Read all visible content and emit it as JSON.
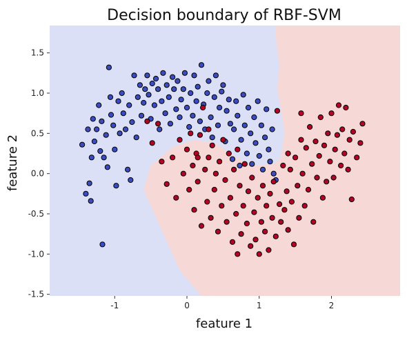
{
  "chart_data": {
    "type": "scatter",
    "title": "Decision boundary of RBF-SVM",
    "xlabel": "feature 1",
    "ylabel": "feature 2",
    "xlim": [
      -1.9,
      2.95
    ],
    "ylim": [
      -1.52,
      1.84
    ],
    "xticks": [
      -1,
      0,
      1,
      2
    ],
    "yticks": [
      -1.5,
      -1.0,
      -0.5,
      0.0,
      0.5,
      1.0,
      1.5
    ],
    "xtick_labels": [
      "-1",
      "0",
      "1",
      "2"
    ],
    "ytick_labels": [
      "-1.5",
      "-1.0",
      "-0.5",
      "0.0",
      "0.5",
      "1.0",
      "1.5"
    ],
    "grid": false,
    "regions": {
      "class_0_color": "#dbe0f7",
      "class_1_color": "#f6d8d6",
      "boundary": [
        [
          0.2,
          -1.52
        ],
        [
          -0.1,
          -1.2
        ],
        [
          -0.35,
          -0.7
        ],
        [
          -0.6,
          -0.2
        ],
        [
          -0.5,
          0.1
        ],
        [
          -0.2,
          0.33
        ],
        [
          0.1,
          0.42
        ],
        [
          0.4,
          0.38
        ],
        [
          0.65,
          0.22
        ],
        [
          0.9,
          0.1
        ],
        [
          1.2,
          0.12
        ],
        [
          1.3,
          0.2
        ],
        [
          1.35,
          0.5
        ],
        [
          1.3,
          0.8
        ],
        [
          1.25,
          1.05
        ],
        [
          1.28,
          1.35
        ],
        [
          1.24,
          1.6
        ],
        [
          1.22,
          1.84
        ]
      ]
    },
    "series": [
      {
        "color": "#3b4cc0",
        "points": [
          [
            -1.45,
            0.36
          ],
          [
            -1.37,
            0.55
          ],
          [
            -1.32,
            0.2
          ],
          [
            -1.4,
            -0.25
          ],
          [
            -1.35,
            -0.12
          ],
          [
            -1.33,
            -0.34
          ],
          [
            -1.3,
            0.68
          ],
          [
            -1.28,
            0.4
          ],
          [
            -1.25,
            0.55
          ],
          [
            -1.22,
            0.85
          ],
          [
            -1.2,
            0.28
          ],
          [
            -1.18,
            0.65
          ],
          [
            -1.17,
            -0.88
          ],
          [
            -1.15,
            0.2
          ],
          [
            -1.12,
            0.48
          ],
          [
            -1.1,
            0.08
          ],
          [
            -1.08,
            1.32
          ],
          [
            -1.06,
            0.95
          ],
          [
            -1.05,
            0.73
          ],
          [
            -1.02,
            0.6
          ],
          [
            -1.0,
            0.3
          ],
          [
            -0.98,
            -0.15
          ],
          [
            -0.95,
            0.9
          ],
          [
            -0.93,
            0.5
          ],
          [
            -0.9,
            1.0
          ],
          [
            -0.88,
            0.75
          ],
          [
            -0.85,
            0.55
          ],
          [
            -0.82,
            0.05
          ],
          [
            -0.8,
            0.85
          ],
          [
            -0.78,
            -0.08
          ],
          [
            -0.76,
            0.64
          ],
          [
            -0.73,
            1.22
          ],
          [
            -0.7,
            0.45
          ],
          [
            -0.68,
            0.95
          ],
          [
            -0.65,
            1.1
          ],
          [
            -0.63,
            0.72
          ],
          [
            -0.6,
            0.88
          ],
          [
            -0.58,
            1.05
          ],
          [
            -0.55,
            1.22
          ],
          [
            -0.53,
            0.98
          ],
          [
            -0.5,
            0.68
          ],
          [
            -0.48,
            1.12
          ],
          [
            -0.45,
            0.85
          ],
          [
            -0.43,
            1.18
          ],
          [
            -0.4,
            1.05
          ],
          [
            -0.38,
            0.55
          ],
          [
            -0.35,
            0.9
          ],
          [
            -0.33,
            1.25
          ],
          [
            -0.3,
            0.75
          ],
          [
            -0.28,
            1.1
          ],
          [
            -0.25,
            0.95
          ],
          [
            -0.23,
            0.62
          ],
          [
            -0.2,
            1.2
          ],
          [
            -0.18,
            1.05
          ],
          [
            -0.15,
            0.8
          ],
          [
            -0.13,
            1.15
          ],
          [
            -0.1,
            0.7
          ],
          [
            -0.08,
            0.92
          ],
          [
            -0.05,
            1.05
          ],
          [
            -0.03,
            1.25
          ],
          [
            0.0,
            0.82
          ],
          [
            0.03,
            0.58
          ],
          [
            0.05,
            1.0
          ],
          [
            0.08,
            0.72
          ],
          [
            0.1,
            1.22
          ],
          [
            0.13,
            0.9
          ],
          [
            0.15,
            1.08
          ],
          [
            0.18,
            0.65
          ],
          [
            0.2,
            1.35
          ],
          [
            0.23,
            0.86
          ],
          [
            0.25,
            0.55
          ],
          [
            0.28,
            1.0
          ],
          [
            0.3,
            1.15
          ],
          [
            0.33,
            0.7
          ],
          [
            0.35,
            0.45
          ],
          [
            0.38,
            0.95
          ],
          [
            0.4,
            1.22
          ],
          [
            0.43,
            0.6
          ],
          [
            0.45,
            0.82
          ],
          [
            0.48,
            1.02
          ],
          [
            0.5,
            1.1
          ],
          [
            0.53,
            0.4
          ],
          [
            0.55,
            0.78
          ],
          [
            0.58,
            0.92
          ],
          [
            0.6,
            0.62
          ],
          [
            0.63,
            0.18
          ],
          [
            0.65,
            0.55
          ],
          [
            0.68,
            0.9
          ],
          [
            0.7,
            0.72
          ],
          [
            0.73,
            0.1
          ],
          [
            0.75,
            0.42
          ],
          [
            0.78,
            0.98
          ],
          [
            0.8,
            0.6
          ],
          [
            0.83,
            0.25
          ],
          [
            0.85,
            0.82
          ],
          [
            0.88,
            0.5
          ],
          [
            0.9,
            0.12
          ],
          [
            0.93,
            0.7
          ],
          [
            0.95,
            0.38
          ],
          [
            0.98,
            0.9
          ],
          [
            1.0,
            0.22
          ],
          [
            1.03,
            0.6
          ],
          [
            1.05,
            0.05
          ],
          [
            1.08,
            0.45
          ],
          [
            1.1,
            0.8
          ],
          [
            1.13,
            0.3
          ],
          [
            1.15,
            0.15
          ],
          [
            1.18,
            0.55
          ],
          [
            1.2,
            0.0
          ],
          [
            1.23,
            -0.08
          ]
        ]
      },
      {
        "color": "#b40426",
        "points": [
          [
            -0.55,
            0.65
          ],
          [
            -0.48,
            0.38
          ],
          [
            -0.35,
            0.15
          ],
          [
            -0.28,
            -0.13
          ],
          [
            -0.2,
            0.2
          ],
          [
            -0.15,
            -0.3
          ],
          [
            -0.1,
            0.42
          ],
          [
            -0.05,
            0.0
          ],
          [
            0.0,
            0.3
          ],
          [
            0.03,
            -0.2
          ],
          [
            0.05,
            0.5
          ],
          [
            0.08,
            0.1
          ],
          [
            0.1,
            -0.45
          ],
          [
            0.13,
            0.25
          ],
          [
            0.15,
            -0.1
          ],
          [
            0.18,
            0.48
          ],
          [
            0.2,
            -0.65
          ],
          [
            0.22,
            0.82
          ],
          [
            0.25,
            0.05
          ],
          [
            0.28,
            -0.35
          ],
          [
            0.3,
            0.2
          ],
          [
            0.33,
            -0.55
          ],
          [
            0.35,
            0.35
          ],
          [
            0.38,
            -0.2
          ],
          [
            0.4,
            0.0
          ],
          [
            0.43,
            -0.72
          ],
          [
            0.45,
            0.15
          ],
          [
            0.48,
            -0.4
          ],
          [
            0.5,
            0.42
          ],
          [
            0.53,
            -0.08
          ],
          [
            0.55,
            -0.6
          ],
          [
            0.58,
            0.25
          ],
          [
            0.6,
            -0.3
          ],
          [
            0.63,
            -0.85
          ],
          [
            0.65,
            0.05
          ],
          [
            0.68,
            -0.5
          ],
          [
            0.7,
            0.3
          ],
          [
            0.73,
            -0.15
          ],
          [
            0.75,
            -0.75
          ],
          [
            0.78,
            -0.4
          ],
          [
            0.8,
            0.12
          ],
          [
            0.83,
            -0.62
          ],
          [
            0.85,
            -0.22
          ],
          [
            0.88,
            -0.9
          ],
          [
            0.9,
            -0.05
          ],
          [
            0.93,
            -0.48
          ],
          [
            0.95,
            -0.82
          ],
          [
            0.98,
            -0.3
          ],
          [
            1.0,
            -1.0
          ],
          [
            1.03,
            -0.6
          ],
          [
            1.05,
            -0.15
          ],
          [
            1.08,
            -0.72
          ],
          [
            1.1,
            -0.4
          ],
          [
            1.13,
            -0.95
          ],
          [
            1.15,
            -0.25
          ],
          [
            1.18,
            -0.55
          ],
          [
            1.2,
            -0.1
          ],
          [
            1.23,
            -0.78
          ],
          [
            1.25,
            0.78
          ],
          [
            1.28,
            -0.38
          ],
          [
            1.3,
            -0.6
          ],
          [
            1.33,
            0.1
          ],
          [
            1.35,
            -0.45
          ],
          [
            1.38,
            -0.22
          ],
          [
            1.4,
            -0.7
          ],
          [
            1.43,
            0.05
          ],
          [
            1.45,
            -0.35
          ],
          [
            1.48,
            -0.88
          ],
          [
            1.5,
            0.2
          ],
          [
            1.53,
            -0.15
          ],
          [
            1.55,
            -0.55
          ],
          [
            1.58,
            0.42
          ],
          [
            1.6,
            0.0
          ],
          [
            1.63,
            -0.4
          ],
          [
            1.65,
            0.32
          ],
          [
            1.68,
            -0.2
          ],
          [
            1.7,
            0.58
          ],
          [
            1.73,
            0.12
          ],
          [
            1.75,
            -0.6
          ],
          [
            1.78,
            0.4
          ],
          [
            1.8,
            -0.05
          ],
          [
            1.83,
            0.22
          ],
          [
            1.85,
            0.7
          ],
          [
            1.88,
            -0.3
          ],
          [
            1.9,
            0.35
          ],
          [
            1.93,
            -0.1
          ],
          [
            1.95,
            0.5
          ],
          [
            1.98,
            0.15
          ],
          [
            2.0,
            0.75
          ],
          [
            2.03,
            -0.05
          ],
          [
            2.05,
            0.3
          ],
          [
            2.08,
            0.48
          ],
          [
            2.1,
            0.85
          ],
          [
            2.13,
            0.1
          ],
          [
            2.15,
            0.55
          ],
          [
            2.18,
            0.25
          ],
          [
            2.2,
            0.82
          ],
          [
            2.23,
            0.05
          ],
          [
            2.25,
            0.42
          ],
          [
            2.28,
            -0.32
          ],
          [
            2.3,
            0.52
          ],
          [
            2.35,
            0.2
          ],
          [
            2.4,
            0.38
          ],
          [
            2.43,
            0.62
          ],
          [
            1.58,
            0.75
          ],
          [
            1.4,
            0.25
          ],
          [
            0.3,
            0.55
          ],
          [
            -0.4,
            0.62
          ],
          [
            0.15,
            0.2
          ],
          [
            0.7,
            -1.0
          ]
        ]
      }
    ]
  }
}
